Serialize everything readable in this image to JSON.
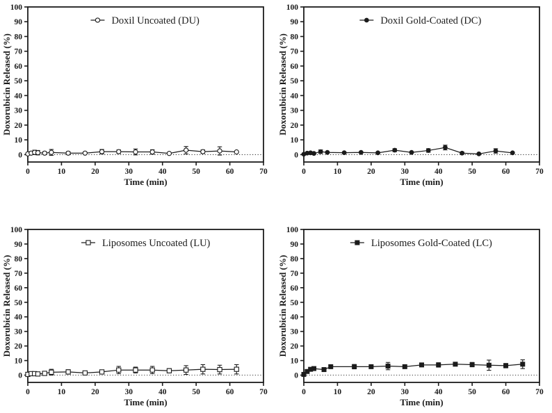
{
  "figure": {
    "background": "#ffffff",
    "ink_color": "#1b1b1b",
    "open_marker_fill": "#ffffff"
  },
  "chart_data": [
    {
      "type": "line",
      "panel": "top-left",
      "legend": "Doxil Uncoated (DU)",
      "marker": "open-circle",
      "xlabel": "Time (min)",
      "ylabel": "Doxorubicin Released (%)",
      "xlim": [
        0,
        70
      ],
      "ylim": [
        -5,
        100
      ],
      "xticks": [
        0,
        10,
        20,
        30,
        40,
        50,
        60,
        70
      ],
      "yticks": [
        0,
        10,
        20,
        30,
        40,
        50,
        60,
        70,
        80,
        90,
        100
      ],
      "baseline": 0,
      "grid": false,
      "legend_position": "top-center",
      "x": [
        0,
        1,
        2,
        3,
        5,
        7,
        12,
        17,
        22,
        27,
        32,
        37,
        42,
        47,
        52,
        57,
        62
      ],
      "y": [
        0.5,
        1.0,
        1.5,
        1.3,
        1.0,
        1.5,
        1.0,
        1.0,
        2.0,
        2.0,
        1.8,
        1.8,
        0.8,
        3.0,
        2.0,
        2.5,
        1.8
      ],
      "yerr": [
        0.5,
        1.0,
        1.5,
        1.5,
        1.0,
        2.0,
        1.0,
        0.4,
        1.5,
        1.2,
        2.0,
        1.5,
        0.3,
        2.5,
        1.2,
        2.8,
        0.5
      ]
    },
    {
      "type": "line",
      "panel": "top-right",
      "legend": "Doxil Gold-Coated (DC)",
      "marker": "filled-circle",
      "xlabel": "Time (min)",
      "ylabel": "Doxorubicin Released (%)",
      "xlim": [
        0,
        70
      ],
      "ylim": [
        -5,
        100
      ],
      "xticks": [
        0,
        10,
        20,
        30,
        40,
        50,
        60,
        70
      ],
      "yticks": [
        0,
        10,
        20,
        30,
        40,
        50,
        60,
        70,
        80,
        90,
        100
      ],
      "baseline": 0,
      "grid": false,
      "legend_position": "top-center",
      "x": [
        0,
        1,
        2,
        3,
        5,
        7,
        12,
        17,
        22,
        27,
        32,
        37,
        42,
        47,
        52,
        57,
        62
      ],
      "y": [
        0.3,
        1.0,
        1.2,
        0.8,
        2.0,
        1.5,
        1.3,
        1.5,
        1.2,
        3.0,
        1.5,
        2.8,
        4.8,
        1.0,
        0.5,
        2.5,
        1.2
      ],
      "yerr": [
        0.3,
        0.4,
        0.5,
        0.6,
        1.2,
        0.5,
        0.3,
        0.3,
        0.4,
        1.0,
        0.3,
        1.2,
        1.6,
        0.8,
        0.3,
        1.5,
        0.3
      ]
    },
    {
      "type": "line",
      "panel": "bottom-left",
      "legend": "Liposomes Uncoated (LU)",
      "marker": "open-square",
      "xlabel": "Time (min)",
      "ylabel": "Doxorubicin Released (%)",
      "xlim": [
        0,
        70
      ],
      "ylim": [
        -5,
        100
      ],
      "xticks": [
        0,
        10,
        20,
        30,
        40,
        50,
        60,
        70
      ],
      "yticks": [
        0,
        10,
        20,
        30,
        40,
        50,
        60,
        70,
        80,
        90,
        100
      ],
      "baseline": 0,
      "grid": false,
      "legend_position": "top-center",
      "x": [
        0,
        1,
        2,
        3,
        5,
        7,
        12,
        17,
        22,
        27,
        32,
        37,
        42,
        47,
        52,
        57,
        62
      ],
      "y": [
        0.5,
        1.0,
        1.0,
        0.8,
        1.2,
        2.0,
        2.2,
        1.5,
        2.2,
        3.5,
        3.5,
        3.5,
        3.0,
        3.5,
        4.0,
        3.8,
        4.0
      ],
      "yerr": [
        0.5,
        0.8,
        1.0,
        0.8,
        1.0,
        2.0,
        1.5,
        0.5,
        1.0,
        2.5,
        2.0,
        2.5,
        1.5,
        3.0,
        3.2,
        3.0,
        3.2
      ]
    },
    {
      "type": "line",
      "panel": "bottom-right",
      "legend": "Liposomes Gold-Coated (LC)",
      "marker": "filled-square",
      "xlabel": "Time (min)",
      "ylabel": "Doxorubicin Released (%)",
      "xlim": [
        0,
        70
      ],
      "ylim": [
        -5,
        100
      ],
      "xticks": [
        0,
        10,
        20,
        30,
        40,
        50,
        60,
        70
      ],
      "yticks": [
        0,
        10,
        20,
        30,
        40,
        50,
        60,
        70,
        80,
        90,
        100
      ],
      "baseline": 0,
      "grid": false,
      "legend_position": "top-center",
      "x": [
        0,
        1,
        2,
        3,
        6,
        8,
        15,
        20,
        25,
        30,
        35,
        40,
        45,
        50,
        55,
        60,
        65
      ],
      "y": [
        0.5,
        2.5,
        4.0,
        4.5,
        3.8,
        5.8,
        5.8,
        5.8,
        6.2,
        5.8,
        7.0,
        7.0,
        7.5,
        7.2,
        6.8,
        6.5,
        7.5
      ],
      "yerr": [
        0.3,
        0.5,
        0.5,
        0.5,
        1.0,
        1.0,
        1.5,
        0.8,
        2.5,
        1.0,
        1.0,
        1.5,
        1.0,
        1.5,
        3.5,
        1.5,
        3.0
      ]
    }
  ]
}
